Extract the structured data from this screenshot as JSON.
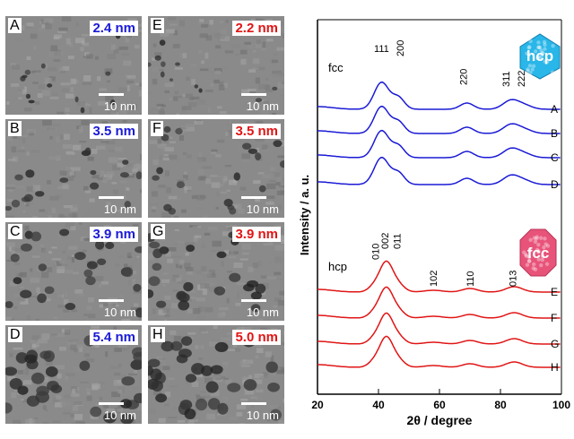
{
  "tem_panels": [
    {
      "letter": "A",
      "size": "2.4 nm",
      "scale": "10 nm",
      "color": "#1a1ad6"
    },
    {
      "letter": "B",
      "size": "3.5 nm",
      "scale": "10 nm",
      "color": "#1a1ad6"
    },
    {
      "letter": "C",
      "size": "3.9 nm",
      "scale": "10 nm",
      "color": "#1a1ad6"
    },
    {
      "letter": "D",
      "size": "5.4 nm",
      "scale": "10 nm",
      "color": "#1a1ad6"
    },
    {
      "letter": "E",
      "size": "2.2 nm",
      "scale": "10 nm",
      "color": "#e01515"
    },
    {
      "letter": "F",
      "size": "3.5 nm",
      "scale": "10 nm",
      "color": "#e01515"
    },
    {
      "letter": "G",
      "size": "3.9 nm",
      "scale": "10 nm",
      "color": "#e01515"
    },
    {
      "letter": "H",
      "size": "5.0 nm",
      "scale": "10 nm",
      "color": "#e01515"
    }
  ],
  "chart_data": {
    "type": "line",
    "xlabel": "2θ / degree",
    "ylabel": "Intensity / a. u.",
    "xlim": [
      20,
      100
    ],
    "xticks": [
      20,
      40,
      60,
      80,
      100
    ],
    "fcc_group_label": "fcc",
    "hcp_group_label": "hcp",
    "fcc_peaks": [
      {
        "label": "111",
        "x": 41
      },
      {
        "label": "200",
        "x": 47
      },
      {
        "label": "220",
        "x": 69
      },
      {
        "label": "311",
        "x": 83
      },
      {
        "label": "222",
        "x": 88
      }
    ],
    "hcp_peaks": [
      {
        "label": "010",
        "x": 39
      },
      {
        "label": "002",
        "x": 42
      },
      {
        "label": "011",
        "x": 46
      },
      {
        "label": "102",
        "x": 58
      },
      {
        "label": "110",
        "x": 70
      },
      {
        "label": "013",
        "x": 84
      }
    ],
    "series": [
      {
        "name": "A",
        "phase": "fcc",
        "color": "#1a1ad6"
      },
      {
        "name": "B",
        "phase": "fcc",
        "color": "#1a1ad6"
      },
      {
        "name": "C",
        "phase": "fcc",
        "color": "#1a1ad6"
      },
      {
        "name": "D",
        "phase": "fcc",
        "color": "#1a1ad6"
      },
      {
        "name": "E",
        "phase": "hcp",
        "color": "#e01515"
      },
      {
        "name": "F",
        "phase": "hcp",
        "color": "#e01515"
      },
      {
        "name": "G",
        "phase": "hcp",
        "color": "#e01515"
      },
      {
        "name": "H",
        "phase": "hcp",
        "color": "#e01515"
      }
    ],
    "badges": [
      {
        "text": "hcp",
        "color": "#29b6e8"
      },
      {
        "text": "fcc",
        "color": "#e8537a"
      }
    ]
  }
}
